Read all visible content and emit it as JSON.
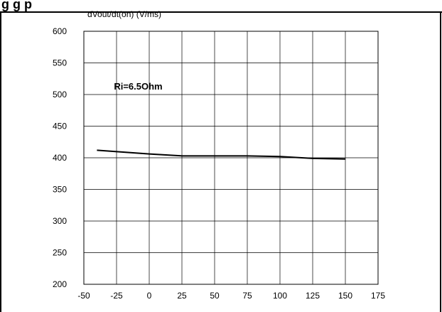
{
  "header": {
    "title": "g                               g p",
    "ylabel_partial": "dVout/dt(on) (V/ms)"
  },
  "chart_data": {
    "type": "line",
    "ylabel": "dVout/dt(on) (V/ms)",
    "annotation": "Ri=6.5Ohm",
    "xlim": [
      -50,
      175
    ],
    "ylim": [
      200,
      600
    ],
    "x_ticks": [
      -50,
      -25,
      0,
      25,
      50,
      75,
      100,
      125,
      150,
      175
    ],
    "y_ticks": [
      200,
      250,
      300,
      350,
      400,
      450,
      500,
      550,
      600
    ],
    "grid": true,
    "series": [
      {
        "x": [
          -40,
          0,
          25,
          75,
          100,
          125,
          150
        ],
        "y": [
          412,
          406,
          403,
          403,
          402,
          399,
          398
        ]
      }
    ],
    "colors": {
      "line": "#000000",
      "grid": "#000000",
      "border": "#000000"
    }
  }
}
